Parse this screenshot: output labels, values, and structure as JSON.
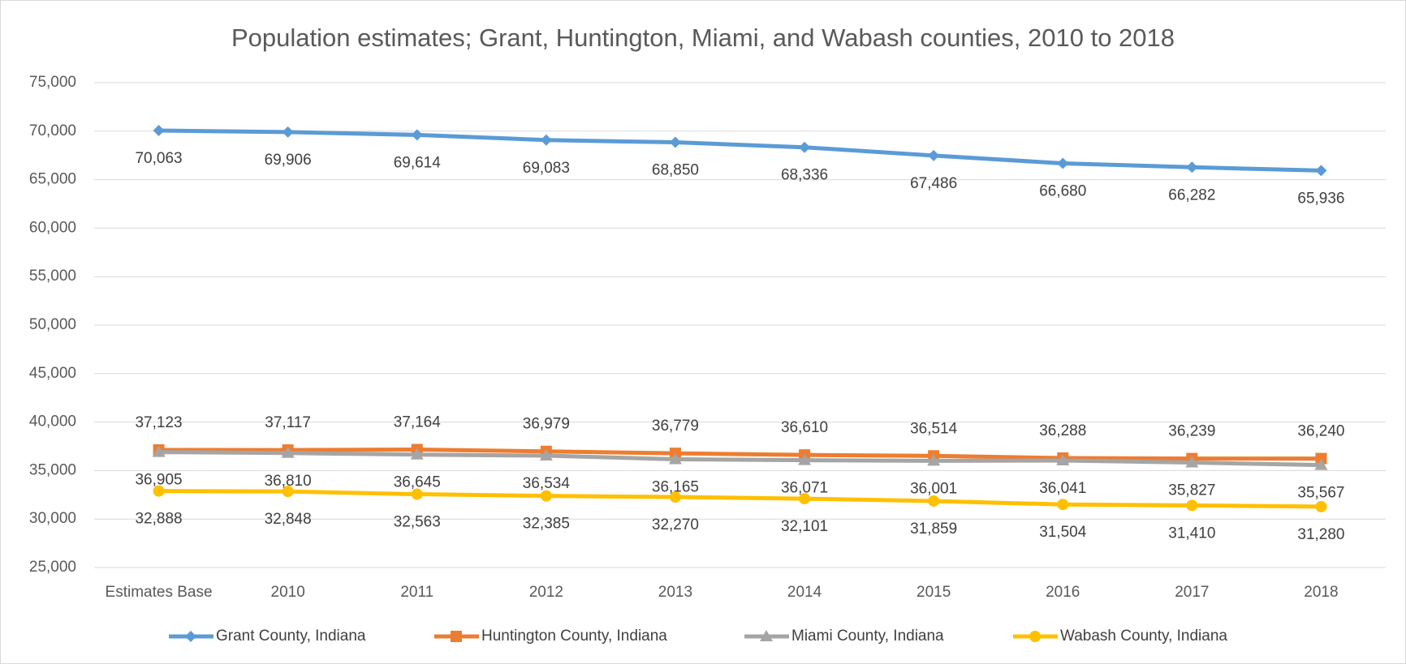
{
  "chart_data": {
    "type": "line",
    "title": "Population estimates; Grant, Huntington, Miami, and Wabash counties, 2010 to 2018",
    "categories": [
      "Estimates Base",
      "2010",
      "2011",
      "2012",
      "2013",
      "2014",
      "2015",
      "2016",
      "2017",
      "2018"
    ],
    "series": [
      {
        "name": "Grant County, Indiana",
        "color": "#5b9bd5",
        "marker": "diamond",
        "values": [
          70063,
          69906,
          69614,
          69083,
          68850,
          68336,
          67486,
          66680,
          66282,
          65936
        ],
        "value_labels": [
          "70,063",
          "69,906",
          "69,614",
          "69,083",
          "68,850",
          "68,336",
          "67,486",
          "66,680",
          "66,282",
          "65,936"
        ]
      },
      {
        "name": "Huntington County, Indiana",
        "color": "#ed7d31",
        "marker": "square",
        "values": [
          37123,
          37117,
          37164,
          36979,
          36779,
          36610,
          36514,
          36288,
          36239,
          36240
        ],
        "value_labels": [
          "37,123",
          "37,117",
          "37,164",
          "36,979",
          "36,779",
          "36,610",
          "36,514",
          "36,288",
          "36,239",
          "36,240"
        ]
      },
      {
        "name": "Miami County, Indiana",
        "color": "#a5a5a5",
        "marker": "triangle",
        "values": [
          36905,
          36810,
          36645,
          36534,
          36165,
          36071,
          36001,
          36041,
          35827,
          35567
        ],
        "value_labels": [
          "36,905",
          "36,810",
          "36,645",
          "36,534",
          "36,165",
          "36,071",
          "36,001",
          "36,041",
          "35,827",
          "35,567"
        ]
      },
      {
        "name": "Wabash County, Indiana",
        "color": "#ffc000",
        "marker": "circle",
        "values": [
          32888,
          32848,
          32563,
          32385,
          32270,
          32101,
          31859,
          31504,
          31410,
          31280
        ],
        "value_labels": [
          "32,888",
          "32,848",
          "32,563",
          "32,385",
          "32,270",
          "32,101",
          "31,859",
          "31,504",
          "31,410",
          "31,280"
        ]
      }
    ],
    "ylim": [
      25000,
      75000
    ],
    "yticks": [
      {
        "value": 25000,
        "label": "25,000"
      },
      {
        "value": 30000,
        "label": "30,000"
      },
      {
        "value": 35000,
        "label": "35,000"
      },
      {
        "value": 40000,
        "label": "40,000"
      },
      {
        "value": 45000,
        "label": "45,000"
      },
      {
        "value": 50000,
        "label": "50,000"
      },
      {
        "value": 55000,
        "label": "55,000"
      },
      {
        "value": 60000,
        "label": "60,000"
      },
      {
        "value": 65000,
        "label": "65,000"
      },
      {
        "value": 70000,
        "label": "70,000"
      },
      {
        "value": 75000,
        "label": "75,000"
      }
    ],
    "grid": true,
    "legend": "bottom"
  }
}
